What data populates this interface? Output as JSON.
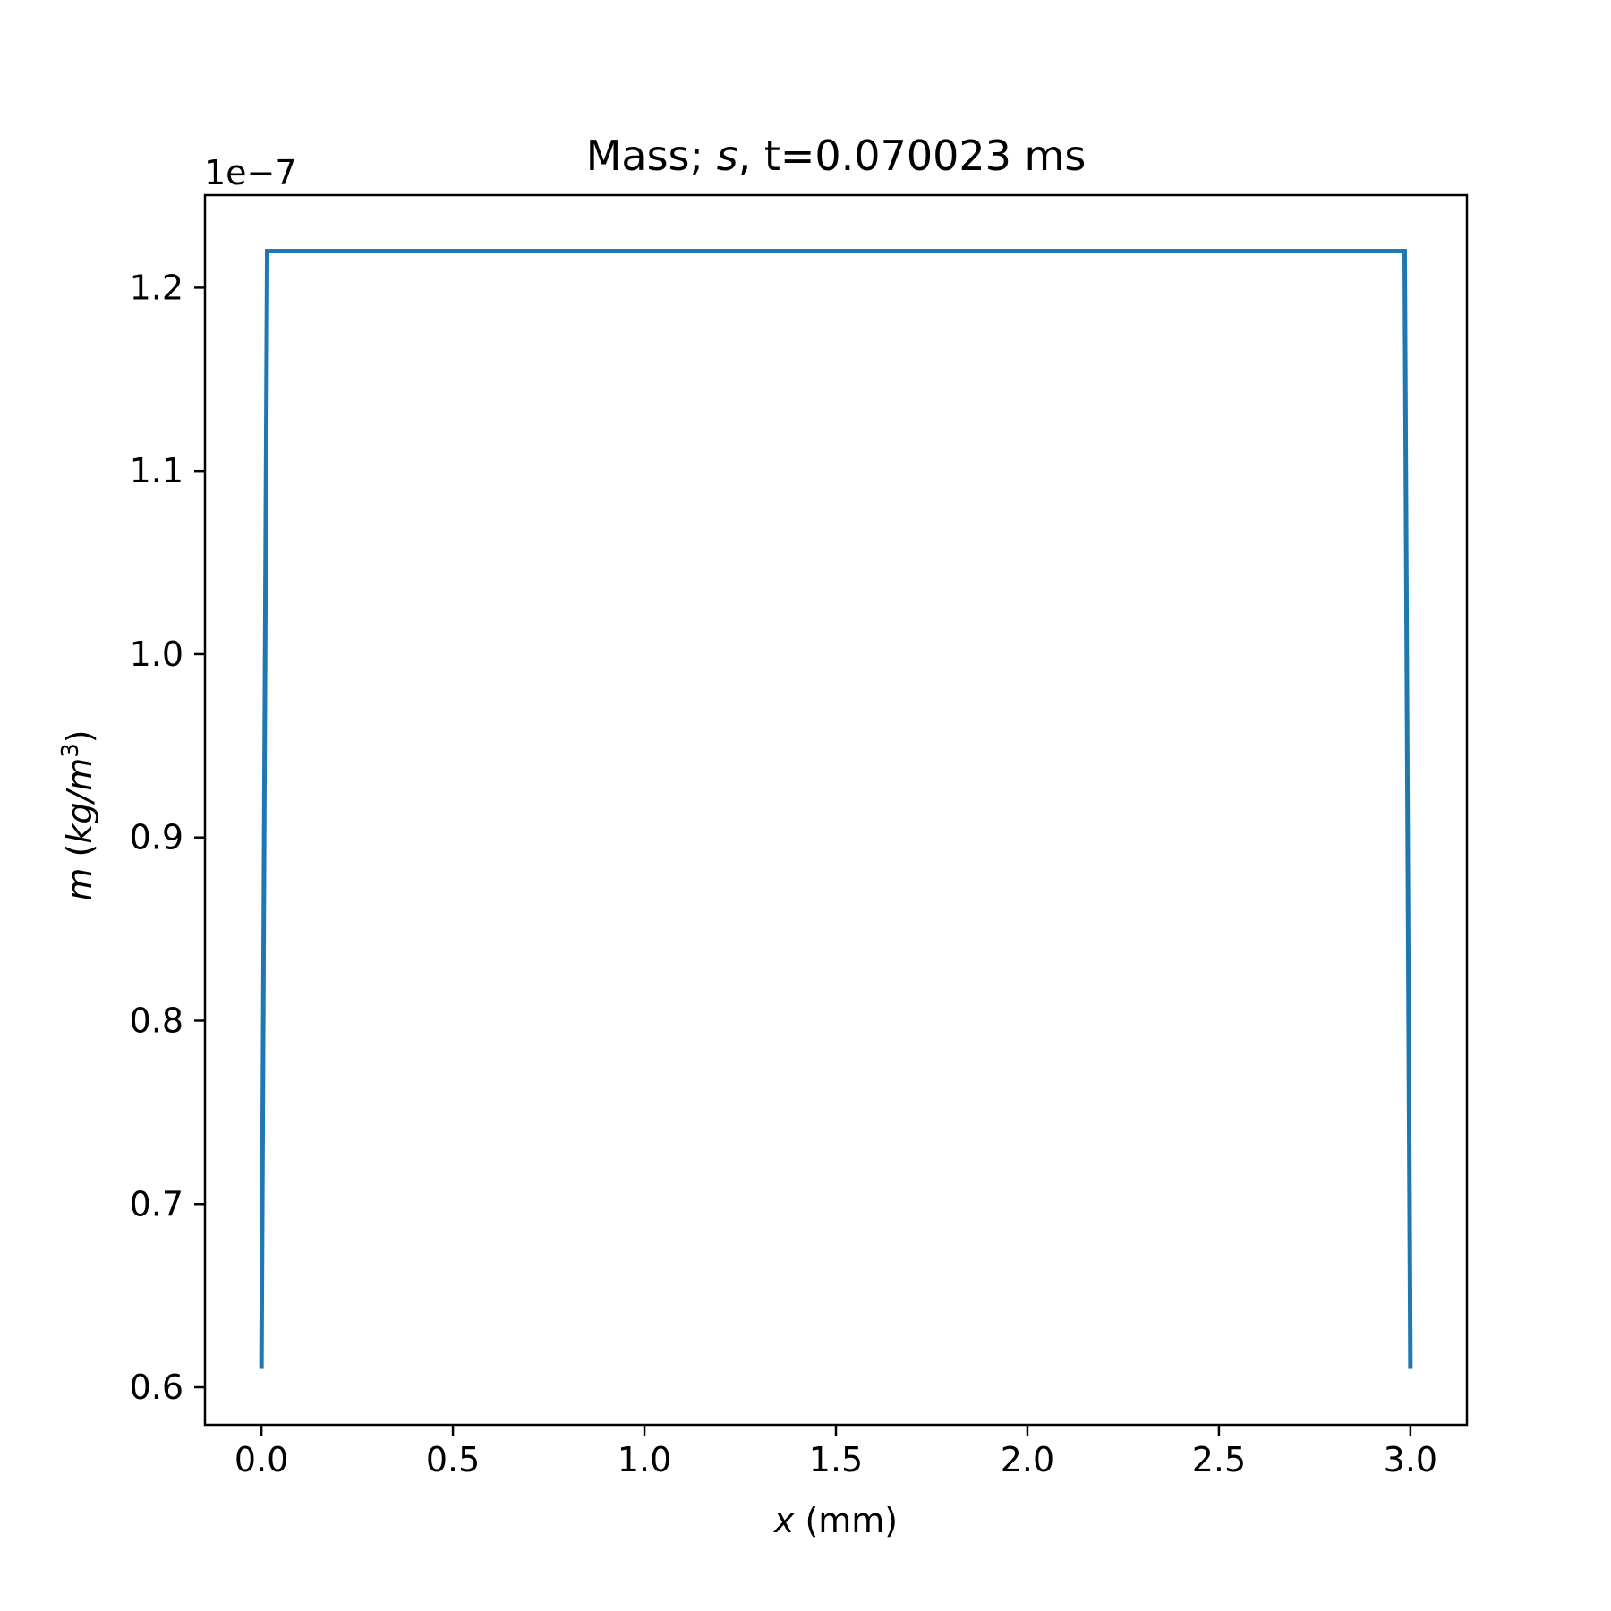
{
  "chart_data": {
    "type": "line",
    "title": {
      "prefix": "Mass; ",
      "symbol": "s",
      "suffix": ", t=0.070023 ms"
    },
    "xlabel": {
      "symbol": "x",
      "unit": " (mm)"
    },
    "ylabel": {
      "symbol": "m",
      "unit_open": " (",
      "unit_italic": "kg/m",
      "unit_sup": "3",
      "unit_close": ")"
    },
    "y_offset_label": "1e−7",
    "xlim": [
      -0.1475,
      3.1475
    ],
    "ylim": [
      0.5795,
      1.2505
    ],
    "x_ticks": [
      {
        "value": 0.0,
        "label": "0.0"
      },
      {
        "value": 0.5,
        "label": "0.5"
      },
      {
        "value": 1.0,
        "label": "1.0"
      },
      {
        "value": 1.5,
        "label": "1.5"
      },
      {
        "value": 2.0,
        "label": "2.0"
      },
      {
        "value": 2.5,
        "label": "2.5"
      },
      {
        "value": 3.0,
        "label": "3.0"
      }
    ],
    "y_ticks": [
      {
        "value": 0.6,
        "label": "0.6"
      },
      {
        "value": 0.7,
        "label": "0.7"
      },
      {
        "value": 0.8,
        "label": "0.8"
      },
      {
        "value": 0.9,
        "label": "0.9"
      },
      {
        "value": 1.0,
        "label": "1.0"
      },
      {
        "value": 1.1,
        "label": "1.1"
      },
      {
        "value": 1.2,
        "label": "1.2"
      }
    ],
    "grid": false,
    "series": [
      {
        "color": "#1f77b4",
        "x": [
          0.0,
          0.015,
          2.985,
          3.0
        ],
        "y": [
          0.61,
          1.22,
          1.22,
          0.61
        ]
      }
    ]
  }
}
